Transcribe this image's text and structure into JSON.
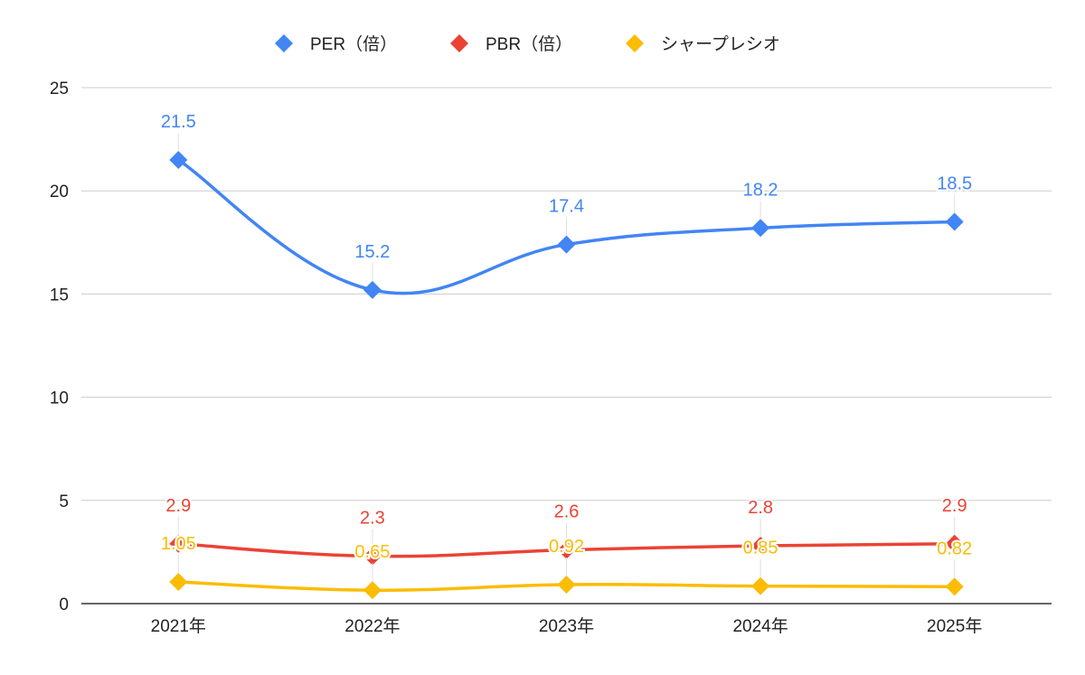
{
  "chart_data": {
    "type": "line",
    "title": "",
    "xlabel": "",
    "ylabel": "",
    "categories": [
      "2021年",
      "2022年",
      "2023年",
      "2024年",
      "2025年"
    ],
    "ylim": [
      0,
      25
    ],
    "yticks": [
      0,
      5,
      10,
      15,
      20,
      25
    ],
    "grid": true,
    "legend_position": "top",
    "series": [
      {
        "name": "PER（倍）",
        "color": "#4285f4",
        "values": [
          21.5,
          15.2,
          17.4,
          18.2,
          18.5
        ],
        "labels": [
          "21.5",
          "15.2",
          "17.4",
          "18.2",
          "18.5"
        ]
      },
      {
        "name": "PBR（倍）",
        "color": "#ea4335",
        "values": [
          2.9,
          2.3,
          2.6,
          2.8,
          2.9
        ],
        "labels": [
          "2.9",
          "2.3",
          "2.6",
          "2.8",
          "2.9"
        ]
      },
      {
        "name": "シャープレシオ",
        "color": "#fbbc04",
        "values": [
          1.05,
          0.65,
          0.92,
          0.85,
          0.82
        ],
        "labels": [
          "1.05",
          "0.65",
          "0.92",
          "0.85",
          "0.82"
        ]
      }
    ]
  }
}
